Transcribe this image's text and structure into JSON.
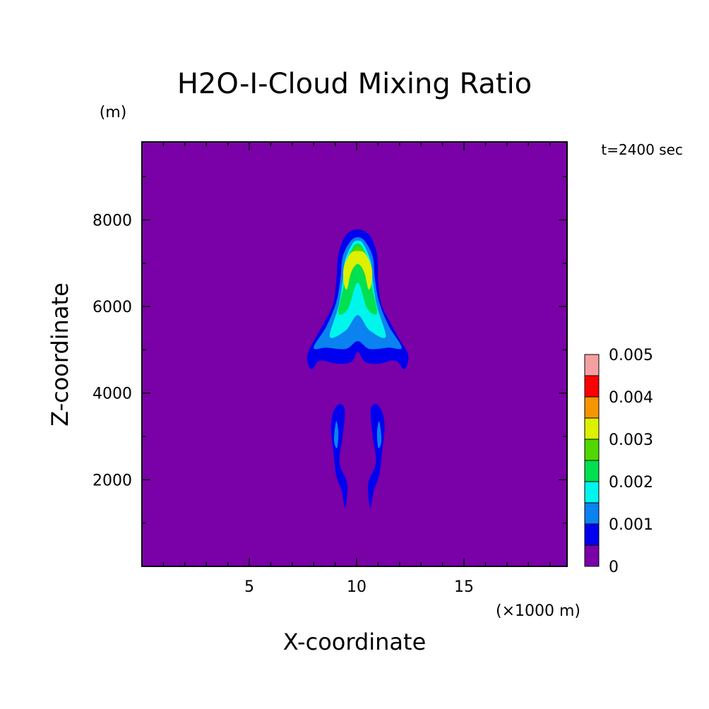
{
  "chart_data": {
    "type": "heatmap",
    "title": "H2O-I-Cloud Mixing Ratio",
    "time_label": "t=2400 sec",
    "xlabel": "X-coordinate",
    "x_unit": "(×1000 m)",
    "ylabel": "Z-coordinate",
    "y_unit": "(m)",
    "xlim": [
      0,
      19.8
    ],
    "ylim": [
      0,
      9800
    ],
    "x_ticks": [
      5,
      10,
      15
    ],
    "y_ticks": [
      2000,
      4000,
      6000,
      8000
    ],
    "background_color": "#7a00a8",
    "levels": [
      0,
      0.0005,
      0.001,
      0.0015,
      0.002,
      0.0025,
      0.003,
      0.0035,
      0.004,
      0.0045,
      0.005
    ],
    "colorbar": {
      "label_values": [
        "0",
        "0.001",
        "0.002",
        "0.003",
        "0.004",
        "0.005"
      ],
      "colors": [
        "#7a00a8",
        "#0000ee",
        "#0a82f0",
        "#00f5ec",
        "#00e050",
        "#50d800",
        "#dcf000",
        "#f59600",
        "#ff0000",
        "#f5a0a0"
      ]
    },
    "contours": [
      {
        "level": 0.0005,
        "color": "#0000ee",
        "points": [
          [
            7.9,
            4.55
          ],
          [
            7.7,
            4.75
          ],
          [
            7.75,
            4.95
          ],
          [
            8.0,
            5.2
          ],
          [
            8.45,
            5.6
          ],
          [
            8.9,
            6.05
          ],
          [
            9.05,
            6.6
          ],
          [
            9.15,
            7.2
          ],
          [
            9.5,
            7.65
          ],
          [
            10.05,
            7.78
          ],
          [
            10.6,
            7.65
          ],
          [
            10.95,
            7.2
          ],
          [
            11.0,
            6.6
          ],
          [
            11.15,
            6.05
          ],
          [
            11.6,
            5.6
          ],
          [
            12.05,
            5.2
          ],
          [
            12.35,
            4.95
          ],
          [
            12.4,
            4.75
          ],
          [
            12.2,
            4.55
          ],
          [
            11.8,
            4.75
          ],
          [
            11.0,
            4.68
          ],
          [
            10.4,
            4.72
          ],
          [
            10.05,
            4.95
          ],
          [
            9.75,
            4.72
          ],
          [
            9.1,
            4.68
          ],
          [
            8.3,
            4.75
          ]
        ]
      },
      {
        "level": 0.0005,
        "color": "#0000ee",
        "points": [
          [
            8.9,
            3.55
          ],
          [
            9.2,
            3.75
          ],
          [
            9.45,
            3.6
          ],
          [
            9.35,
            3.0
          ],
          [
            9.2,
            2.4
          ],
          [
            9.55,
            1.95
          ],
          [
            9.55,
            1.6
          ],
          [
            9.45,
            1.35
          ],
          [
            9.3,
            1.75
          ],
          [
            9.05,
            2.1
          ],
          [
            8.9,
            2.7
          ],
          [
            8.8,
            3.2
          ]
        ]
      },
      {
        "level": 0.0005,
        "color": "#0000ee",
        "points": [
          [
            11.2,
            3.55
          ],
          [
            10.9,
            3.75
          ],
          [
            10.65,
            3.6
          ],
          [
            10.75,
            3.0
          ],
          [
            10.9,
            2.4
          ],
          [
            10.55,
            1.95
          ],
          [
            10.55,
            1.6
          ],
          [
            10.65,
            1.35
          ],
          [
            10.8,
            1.75
          ],
          [
            11.05,
            2.1
          ],
          [
            11.2,
            2.7
          ],
          [
            11.3,
            3.2
          ]
        ]
      },
      {
        "level": 0.001,
        "color": "#0a82f0",
        "points": [
          [
            8.0,
            5.05
          ],
          [
            8.6,
            5.55
          ],
          [
            9.05,
            6.1
          ],
          [
            9.25,
            6.65
          ],
          [
            9.35,
            7.15
          ],
          [
            9.7,
            7.5
          ],
          [
            10.05,
            7.6
          ],
          [
            10.4,
            7.5
          ],
          [
            10.75,
            7.15
          ],
          [
            10.85,
            6.65
          ],
          [
            11.05,
            6.1
          ],
          [
            11.5,
            5.55
          ],
          [
            12.1,
            5.05
          ],
          [
            11.5,
            5.05
          ],
          [
            10.6,
            5.02
          ],
          [
            10.05,
            5.2
          ],
          [
            9.5,
            5.02
          ],
          [
            8.6,
            5.05
          ]
        ]
      },
      {
        "level": 0.001,
        "color": "#0a82f0",
        "points": [
          [
            8.95,
            3.0
          ],
          [
            9.05,
            3.35
          ],
          [
            9.15,
            3.1
          ],
          [
            9.1,
            2.75
          ],
          [
            8.98,
            2.8
          ]
        ]
      },
      {
        "level": 0.001,
        "color": "#0a82f0",
        "points": [
          [
            11.15,
            3.0
          ],
          [
            11.05,
            3.35
          ],
          [
            10.95,
            3.1
          ],
          [
            11.0,
            2.75
          ],
          [
            11.12,
            2.8
          ]
        ]
      },
      {
        "level": 0.0015,
        "color": "#00f5ec",
        "points": [
          [
            8.75,
            5.3
          ],
          [
            9.15,
            6.0
          ],
          [
            9.35,
            6.6
          ],
          [
            9.45,
            7.05
          ],
          [
            9.8,
            7.45
          ],
          [
            10.05,
            7.52
          ],
          [
            10.3,
            7.45
          ],
          [
            10.65,
            7.05
          ],
          [
            10.75,
            6.6
          ],
          [
            10.95,
            6.0
          ],
          [
            11.35,
            5.3
          ],
          [
            10.6,
            5.45
          ],
          [
            10.05,
            5.8
          ],
          [
            9.5,
            5.45
          ]
        ]
      },
      {
        "level": 0.002,
        "color": "#00e050",
        "points": [
          [
            9.15,
            5.85
          ],
          [
            9.4,
            6.5
          ],
          [
            9.5,
            7.0
          ],
          [
            9.85,
            7.38
          ],
          [
            10.05,
            7.45
          ],
          [
            10.25,
            7.38
          ],
          [
            10.6,
            7.0
          ],
          [
            10.7,
            6.5
          ],
          [
            10.95,
            5.85
          ],
          [
            10.5,
            5.95
          ],
          [
            10.05,
            6.55
          ],
          [
            9.6,
            5.95
          ]
        ]
      },
      {
        "level": 0.0025,
        "color": "#50d800",
        "points": [
          [
            9.45,
            6.45
          ],
          [
            9.5,
            6.95
          ],
          [
            9.85,
            7.32
          ],
          [
            10.05,
            7.38
          ],
          [
            10.25,
            7.32
          ],
          [
            10.6,
            6.95
          ],
          [
            10.65,
            6.45
          ],
          [
            10.4,
            6.7
          ],
          [
            10.05,
            7.05
          ],
          [
            9.7,
            6.7
          ]
        ]
      },
      {
        "level": 0.003,
        "color": "#dcf000",
        "points": [
          [
            9.4,
            6.55
          ],
          [
            9.4,
            6.9
          ],
          [
            9.7,
            7.22
          ],
          [
            10.05,
            7.28
          ],
          [
            10.4,
            7.22
          ],
          [
            10.7,
            6.9
          ],
          [
            10.7,
            6.55
          ],
          [
            10.55,
            6.4
          ],
          [
            10.35,
            6.8
          ],
          [
            10.05,
            6.98
          ],
          [
            9.75,
            6.8
          ],
          [
            9.55,
            6.4
          ]
        ]
      }
    ]
  }
}
